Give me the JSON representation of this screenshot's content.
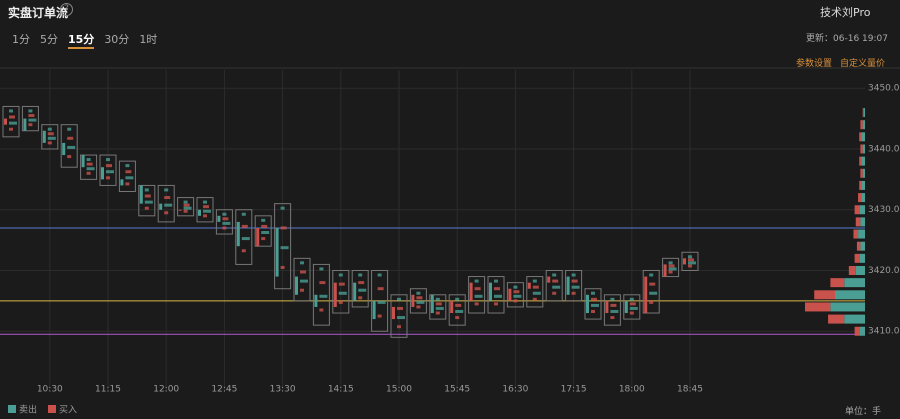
{
  "header": {
    "title": "实盘订单流",
    "tabs": [
      "1分",
      "5分",
      "15分",
      "30分",
      "1时"
    ],
    "active_tab": 2,
    "user": "技术刘Pro",
    "updated": "更新：06-16 19:07",
    "settings": "参数设置",
    "custom": "自定义量价",
    "unit": "单位：手"
  },
  "chart_data": {
    "type": "candlestick",
    "categories": [
      null,
      null,
      "10:30",
      null,
      null,
      "11:15",
      null,
      null,
      "12:00",
      null,
      null,
      "12:45",
      null,
      null,
      "13:30",
      null,
      null,
      "14:15",
      null,
      null,
      "15:00",
      null,
      null,
      "15:45",
      null,
      null,
      "16:30",
      null,
      null,
      "17:15",
      null,
      null,
      "18:00",
      null,
      null,
      "18:45"
    ],
    "open": [
      3444,
      3445,
      3443,
      3441,
      3439,
      3437,
      3435,
      3434,
      3431,
      3430,
      3430,
      3429,
      3428,
      3424,
      3427,
      3419,
      3416,
      3414,
      3418,
      3415,
      3412,
      3414,
      3416,
      3413,
      3415,
      3418,
      3415,
      3417,
      3418,
      3419,
      3416,
      3413,
      3415,
      3413,
      3419,
      3421
    ],
    "high": [
      3447,
      3447,
      3444,
      3444,
      3439,
      3439,
      3438,
      3434,
      3434,
      3432,
      3432,
      3430,
      3430,
      3429,
      3431,
      3422,
      3421,
      3420,
      3420,
      3420,
      3416,
      3417,
      3416,
      3416,
      3419,
      3419,
      3418,
      3419,
      3420,
      3420,
      3417,
      3416,
      3416,
      3420,
      3422,
      3423
    ],
    "low": [
      3442,
      3443,
      3440,
      3437,
      3435,
      3434,
      3433,
      3429,
      3428,
      3429,
      3428,
      3426,
      3421,
      3424,
      3417,
      3415,
      3411,
      3413,
      3414,
      3410,
      3409,
      3413,
      3412,
      3411,
      3413,
      3413,
      3414,
      3414,
      3415,
      3415,
      3412,
      3411,
      3412,
      3413,
      3419,
      3420
    ],
    "close": [
      3445,
      3443,
      3441,
      3439,
      3437,
      3435,
      3434,
      3431,
      3430,
      3430,
      3429,
      3428,
      3424,
      3427,
      3419,
      3416,
      3414,
      3418,
      3415,
      3412,
      3414,
      3416,
      3413,
      3415,
      3418,
      3415,
      3417,
      3418,
      3419,
      3416,
      3413,
      3415,
      3413,
      3419,
      3421,
      3422
    ],
    "up_color": "#c9524c",
    "down_color": "#4a9e94",
    "ylim": [
      3400,
      3453
    ],
    "yticks": [
      {
        "value": 3410,
        "label": "3410.0"
      },
      {
        "value": 3420,
        "label": "3420.0"
      },
      {
        "value": 3430,
        "label": "3430.0"
      },
      {
        "value": 3440,
        "label": "3440.0"
      },
      {
        "value": 3450,
        "label": "3450.0"
      }
    ],
    "grid": true,
    "lines": [
      {
        "value": 3427,
        "color": "#5a7bd6"
      },
      {
        "value": 3415,
        "color": "#d9b84a"
      },
      {
        "value": 3409.5,
        "color": "#b25ad6"
      }
    ],
    "profile": {
      "prices": [
        3410,
        3412,
        3414,
        3416,
        3418,
        3420,
        3422,
        3424,
        3426,
        3428,
        3430,
        3432,
        3434,
        3436,
        3438,
        3440,
        3442,
        3444,
        3446
      ],
      "sell": [
        5,
        18,
        30,
        26,
        18,
        8,
        5,
        4,
        6,
        4,
        5,
        3,
        3,
        2,
        3,
        2,
        3,
        2,
        1
      ],
      "buy": [
        4,
        14,
        22,
        18,
        12,
        6,
        4,
        3,
        4,
        4,
        4,
        3,
        2,
        2,
        2,
        2,
        2,
        2,
        1
      ]
    },
    "legend": [
      {
        "name": "卖出",
        "color": "#4a9e94"
      },
      {
        "name": "买入",
        "color": "#c9524c"
      }
    ]
  }
}
